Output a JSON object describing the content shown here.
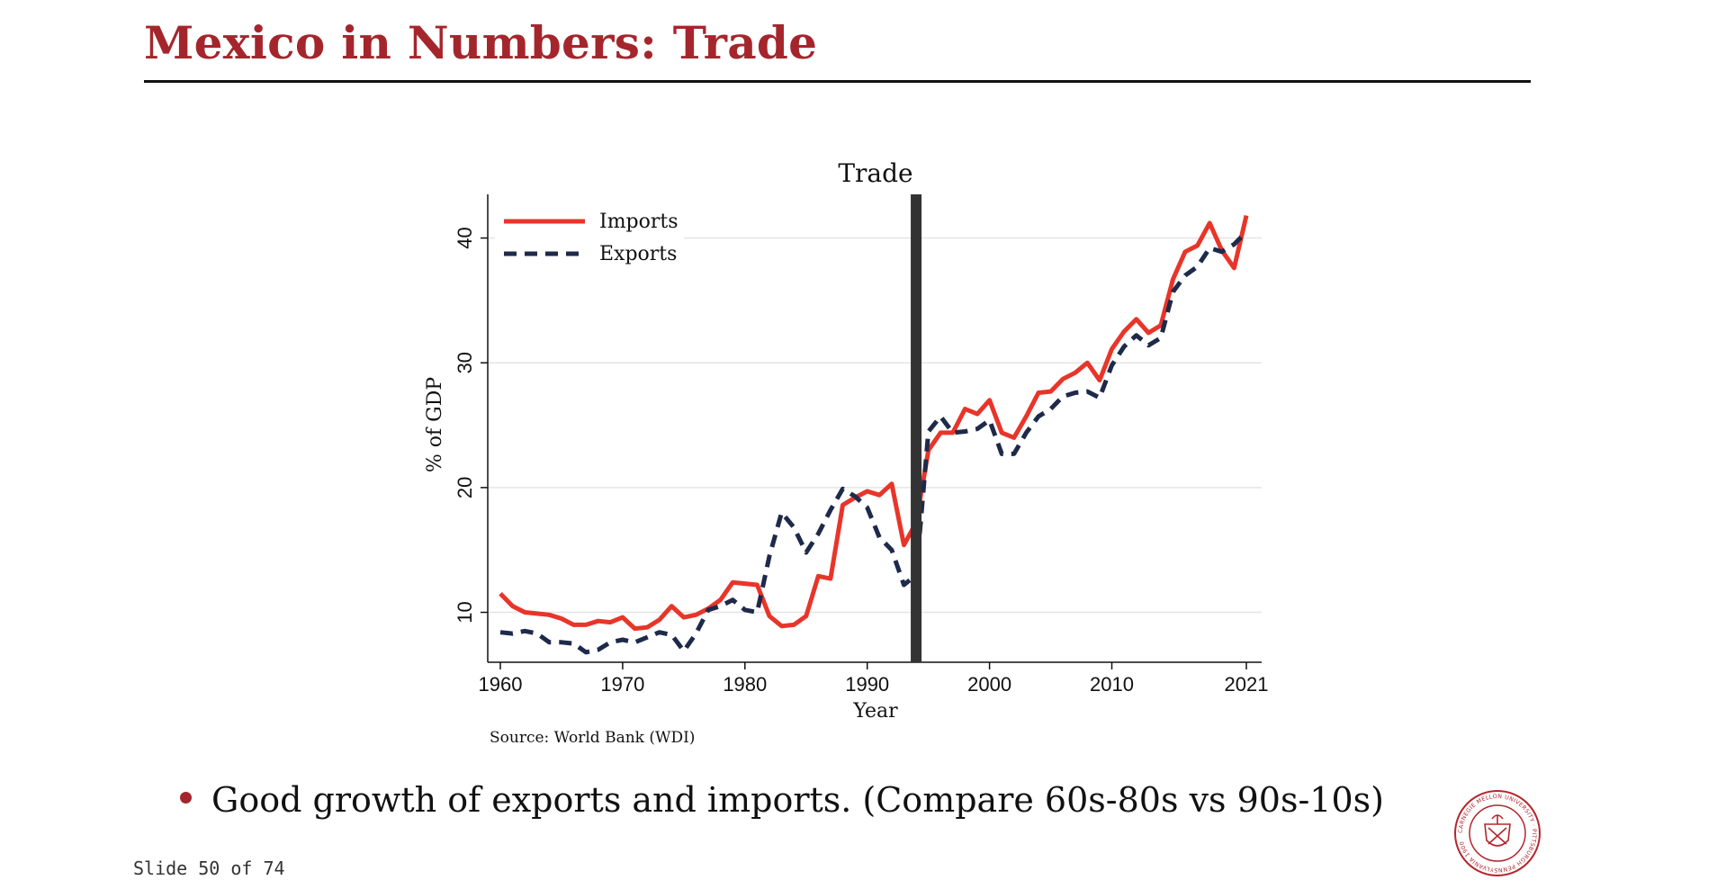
{
  "slide": {
    "title": "Mexico in Numbers: Trade",
    "bullet": "Good growth of exports and imports. (Compare 60s-80s vs 90s-10s)",
    "slide_number": "Slide 50 of 74",
    "seal_text": "CARNEGIE MELLON UNIVERSITY · PITTSBURGH PENNSYLVANIA 1900",
    "title_color": "#a4262c"
  },
  "chart_data": {
    "type": "line",
    "title": "Trade",
    "xlabel": "Year",
    "ylabel": "% of GDP",
    "source": "Source: World Bank (WDI)",
    "xlim": [
      1960,
      2021
    ],
    "ylim": [
      6,
      43.5
    ],
    "xticks": [
      1960,
      1970,
      1980,
      1990,
      2000,
      2010,
      2021
    ],
    "yticks": [
      10,
      20,
      30,
      40
    ],
    "grid": true,
    "legend_position": "top-left",
    "vertical_marker": {
      "x": 1994,
      "color": "#333333"
    },
    "x": [
      1960,
      1961,
      1962,
      1963,
      1964,
      1965,
      1966,
      1967,
      1968,
      1969,
      1970,
      1971,
      1972,
      1973,
      1974,
      1975,
      1976,
      1977,
      1978,
      1979,
      1980,
      1981,
      1982,
      1983,
      1984,
      1985,
      1986,
      1987,
      1988,
      1989,
      1990,
      1991,
      1992,
      1993,
      1994,
      1995,
      1996,
      1997,
      1998,
      1999,
      2000,
      2001,
      2002,
      2003,
      2004,
      2005,
      2006,
      2007,
      2008,
      2009,
      2010,
      2011,
      2012,
      2013,
      2014,
      2015,
      2016,
      2017,
      2018,
      2019,
      2020,
      2021
    ],
    "series": [
      {
        "name": "Imports",
        "color": "#e8352a",
        "style": "solid",
        "values": [
          11.5,
          10.5,
          10.0,
          9.9,
          9.8,
          9.5,
          9.0,
          9.0,
          9.3,
          9.2,
          9.6,
          8.7,
          8.8,
          9.4,
          10.5,
          9.6,
          9.8,
          10.3,
          11.0,
          12.4,
          12.3,
          12.2,
          9.7,
          8.9,
          9.0,
          9.7,
          12.9,
          12.7,
          18.6,
          19.2,
          19.7,
          19.4,
          20.3,
          15.4,
          17.2,
          23.0,
          24.4,
          24.4,
          26.3,
          25.9,
          27.0,
          24.4,
          24.0,
          25.7,
          27.6,
          27.7,
          28.7,
          29.2,
          30.0,
          28.6,
          31.1,
          32.5,
          33.5,
          32.4,
          33.0,
          36.7,
          38.9,
          39.4,
          41.2,
          39.0,
          37.6,
          41.8
        ]
      },
      {
        "name": "Exports",
        "color": "#1e2a4a",
        "style": "dashed",
        "values": [
          8.4,
          8.3,
          8.5,
          8.3,
          7.6,
          7.6,
          7.5,
          6.8,
          7.0,
          7.6,
          7.8,
          7.6,
          8.0,
          8.4,
          8.2,
          6.9,
          8.3,
          10.2,
          10.5,
          11.0,
          10.2,
          10.0,
          14.5,
          18.0,
          16.8,
          14.8,
          16.3,
          18.2,
          19.9,
          19.3,
          18.4,
          16.0,
          15.0,
          12.2,
          13.0,
          24.5,
          25.7,
          24.4,
          24.5,
          24.7,
          25.4,
          22.7,
          22.7,
          24.4,
          25.7,
          26.3,
          27.3,
          27.6,
          27.7,
          27.2,
          29.8,
          31.3,
          32.2,
          31.4,
          32.0,
          35.7,
          37.0,
          37.7,
          39.2,
          38.9,
          39.5,
          40.5
        ]
      }
    ]
  }
}
